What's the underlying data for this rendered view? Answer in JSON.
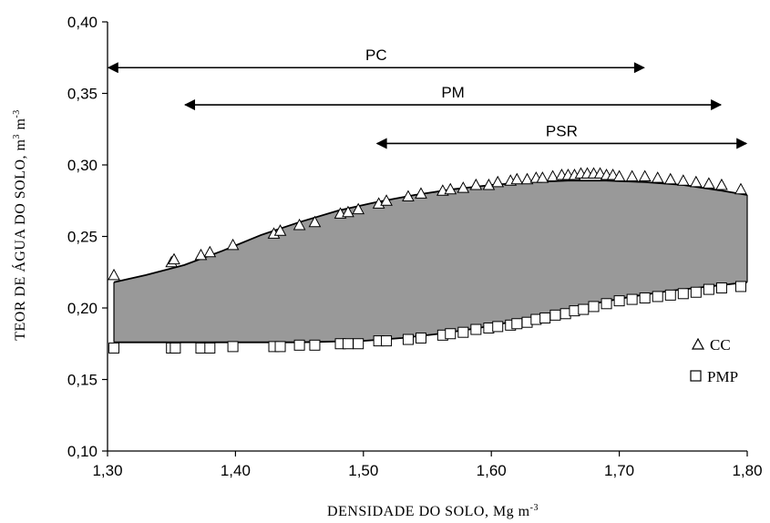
{
  "chart_data": {
    "type": "scatter",
    "title": "",
    "xlabel": "DENSIDADE DO SOLO, Mg m",
    "xlabel_sup": "-3",
    "ylabel_main": "TEOR DE ÁGUA DO SOLO, m",
    "ylabel_sup1": "3",
    "ylabel_mid": " m",
    "ylabel_sup2": "-3",
    "xlim": [
      1.3,
      1.8
    ],
    "ylim": [
      0.1,
      0.4
    ],
    "x_ticks": [
      {
        "value": 1.3,
        "label": "1,30"
      },
      {
        "value": 1.4,
        "label": "1,40"
      },
      {
        "value": 1.5,
        "label": "1,50"
      },
      {
        "value": 1.6,
        "label": "1,60"
      },
      {
        "value": 1.7,
        "label": "1,70"
      },
      {
        "value": 1.8,
        "label": "1,80"
      }
    ],
    "y_ticks": [
      {
        "value": 0.1,
        "label": "0,10"
      },
      {
        "value": 0.15,
        "label": "0,15"
      },
      {
        "value": 0.2,
        "label": "0,20"
      },
      {
        "value": 0.25,
        "label": "0,25"
      },
      {
        "value": 0.3,
        "label": "0,30"
      },
      {
        "value": 0.35,
        "label": "0,35"
      },
      {
        "value": 0.4,
        "label": "0,40"
      }
    ],
    "legend": {
      "placement": "right",
      "entries": [
        {
          "label": "CC",
          "marker": "triangle"
        },
        {
          "label": "PMP",
          "marker": "square"
        }
      ]
    },
    "shaded_area_color": "#999999",
    "ranges": [
      {
        "label": "PC",
        "x_start": 1.3,
        "x_end": 1.72,
        "y": 0.368
      },
      {
        "label": "PM",
        "x_start": 1.36,
        "x_end": 1.78,
        "y": 0.342
      },
      {
        "label": "PSR",
        "x_start": 1.51,
        "x_end": 1.8,
        "y": 0.315
      }
    ],
    "series": [
      {
        "name": "CC",
        "marker": "triangle",
        "curve": {
          "x": [
            1.305,
            1.33,
            1.36,
            1.39,
            1.42,
            1.45,
            1.48,
            1.51,
            1.54,
            1.57,
            1.6,
            1.63,
            1.66,
            1.69,
            1.72,
            1.75,
            1.78,
            1.8
          ],
          "y": [
            0.218,
            0.223,
            0.23,
            0.24,
            0.251,
            0.26,
            0.268,
            0.274,
            0.279,
            0.283,
            0.286,
            0.288,
            0.289,
            0.289,
            0.288,
            0.286,
            0.282,
            0.279
          ]
        },
        "points": {
          "x": [
            1.305,
            1.35,
            1.352,
            1.373,
            1.38,
            1.398,
            1.43,
            1.435,
            1.45,
            1.462,
            1.482,
            1.488,
            1.496,
            1.512,
            1.518,
            1.535,
            1.545,
            1.562,
            1.568,
            1.578,
            1.588,
            1.598,
            1.605,
            1.615,
            1.62,
            1.628,
            1.635,
            1.64,
            1.648,
            1.655,
            1.66,
            1.665,
            1.67,
            1.675,
            1.68,
            1.685,
            1.69,
            1.695,
            1.7,
            1.71,
            1.72,
            1.73,
            1.74,
            1.75,
            1.76,
            1.77,
            1.78,
            1.795
          ],
          "y": [
            0.223,
            0.232,
            0.234,
            0.237,
            0.239,
            0.244,
            0.252,
            0.254,
            0.258,
            0.26,
            0.266,
            0.267,
            0.269,
            0.273,
            0.275,
            0.278,
            0.28,
            0.282,
            0.283,
            0.284,
            0.286,
            0.286,
            0.288,
            0.289,
            0.29,
            0.29,
            0.291,
            0.291,
            0.292,
            0.293,
            0.293,
            0.293,
            0.294,
            0.294,
            0.294,
            0.294,
            0.293,
            0.293,
            0.292,
            0.292,
            0.292,
            0.291,
            0.29,
            0.289,
            0.288,
            0.287,
            0.286,
            0.283
          ]
        }
      },
      {
        "name": "PMP",
        "marker": "square",
        "curve": {
          "x": [
            1.305,
            1.35,
            1.4,
            1.45,
            1.5,
            1.53,
            1.56,
            1.59,
            1.62,
            1.65,
            1.68,
            1.71,
            1.74,
            1.77,
            1.8
          ],
          "y": [
            0.176,
            0.176,
            0.176,
            0.176,
            0.177,
            0.179,
            0.182,
            0.186,
            0.191,
            0.197,
            0.203,
            0.208,
            0.212,
            0.215,
            0.218
          ]
        },
        "points": {
          "x": [
            1.305,
            1.35,
            1.353,
            1.373,
            1.38,
            1.398,
            1.43,
            1.435,
            1.45,
            1.462,
            1.482,
            1.488,
            1.496,
            1.512,
            1.518,
            1.535,
            1.545,
            1.562,
            1.568,
            1.578,
            1.588,
            1.598,
            1.605,
            1.615,
            1.62,
            1.628,
            1.635,
            1.642,
            1.65,
            1.658,
            1.665,
            1.672,
            1.68,
            1.69,
            1.7,
            1.71,
            1.72,
            1.73,
            1.74,
            1.75,
            1.76,
            1.77,
            1.78,
            1.795
          ],
          "y": [
            0.172,
            0.172,
            0.172,
            0.172,
            0.172,
            0.173,
            0.173,
            0.173,
            0.174,
            0.174,
            0.175,
            0.175,
            0.175,
            0.177,
            0.177,
            0.178,
            0.179,
            0.181,
            0.182,
            0.183,
            0.185,
            0.186,
            0.187,
            0.188,
            0.189,
            0.19,
            0.192,
            0.193,
            0.195,
            0.196,
            0.198,
            0.199,
            0.201,
            0.203,
            0.205,
            0.206,
            0.207,
            0.208,
            0.209,
            0.21,
            0.211,
            0.213,
            0.214,
            0.215
          ]
        }
      }
    ]
  }
}
